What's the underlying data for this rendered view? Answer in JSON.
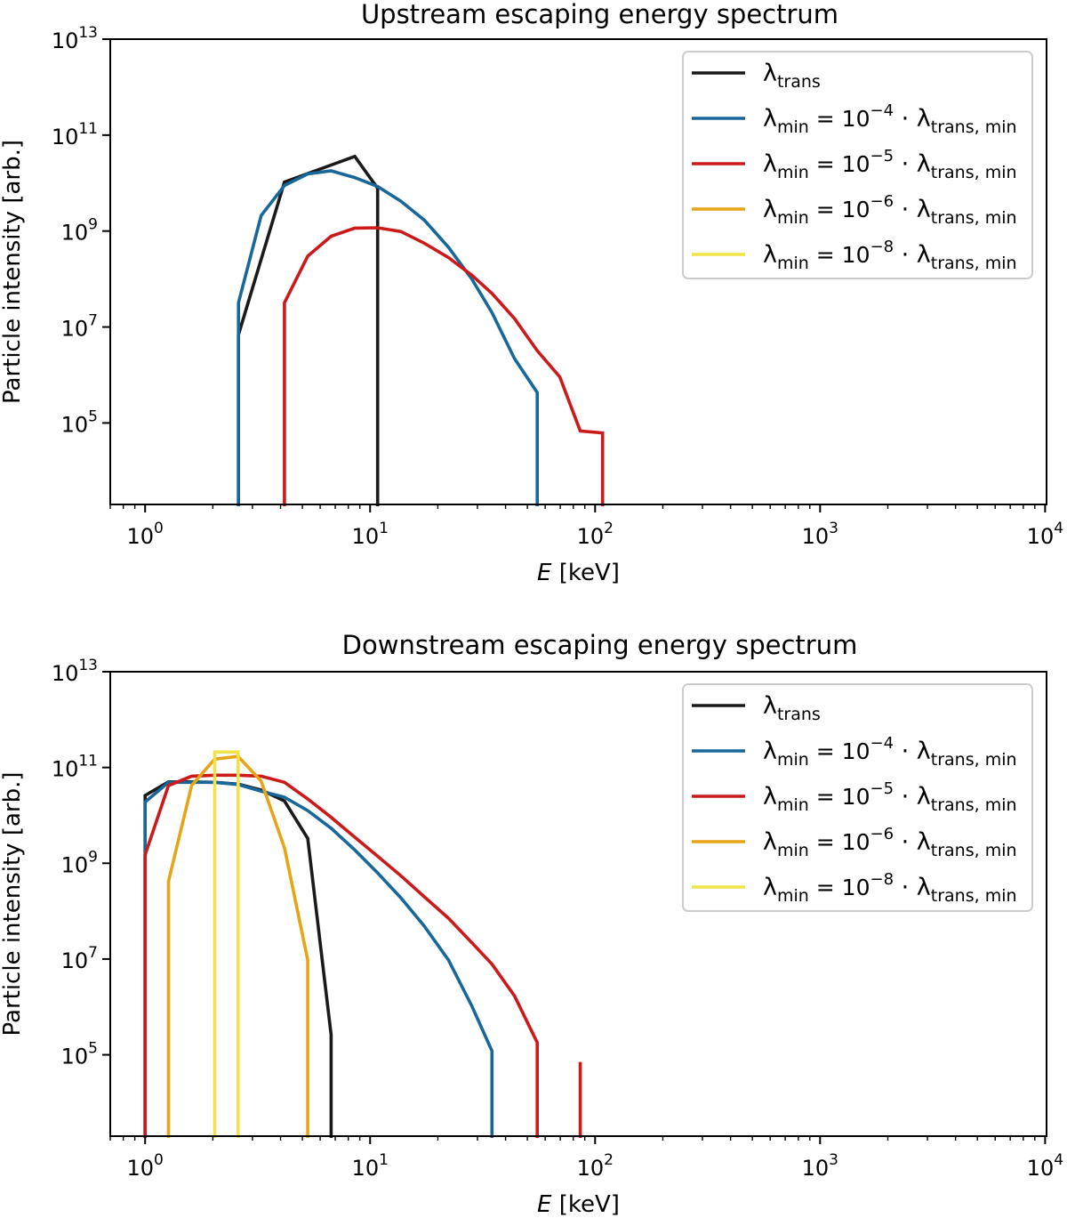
{
  "colors": {
    "lambda_trans": "#1a1a1a",
    "lambda_min_1e-4": "#17679a",
    "lambda_min_1e-5": "#cc1a1a",
    "lambda_min_1e-6": "#e8a417",
    "lambda_min_1e-8": "#f0e34a"
  },
  "chart_data": [
    {
      "type": "line",
      "title": "Upstream escaping energy spectrum",
      "xlabel": {
        "var": "E",
        "unit": " [keV]"
      },
      "ylabel": "Particle intensity [arb.]",
      "xscale": "log",
      "yscale": "log",
      "xlim": [
        0.7,
        10150
      ],
      "ylim": [
        2000,
        10000000000000.0
      ],
      "x_ticks": [
        1,
        10,
        100,
        1000,
        10000
      ],
      "x_tick_labels": [
        {
          "base": "10",
          "exp": "0"
        },
        {
          "base": "10",
          "exp": "1"
        },
        {
          "base": "10",
          "exp": "2"
        },
        {
          "base": "10",
          "exp": "3"
        },
        {
          "base": "10",
          "exp": "4"
        }
      ],
      "y_ticks": [
        100000.0,
        10000000.0,
        1000000000.0,
        100000000000.0,
        10000000000000.0
      ],
      "y_tick_labels": [
        {
          "base": "10",
          "exp": "5"
        },
        {
          "base": "10",
          "exp": "7"
        },
        {
          "base": "10",
          "exp": "9"
        },
        {
          "base": "10",
          "exp": "11"
        },
        {
          "base": "10",
          "exp": "13"
        }
      ],
      "grid": false,
      "legend_position": "top-right",
      "series": [
        {
          "key": "lambda_trans",
          "label": {
            "sym": "λ",
            "sub": "trans",
            "eq": "",
            "exp": "",
            "tail": "",
            "tail_sub": ""
          },
          "x": [
            2.6,
            4.16,
            8.55,
            10.8
          ],
          "y": [
            6900000.0,
            10500000000.0,
            36000000000.0,
            7800000000.0
          ]
        },
        {
          "key": "lambda_min_1e-4",
          "label": {
            "sym": "λ",
            "sub": "min",
            "eq": " = 10",
            "exp": "−4",
            "tail": " · λ",
            "tail_sub": "trans, min"
          },
          "x": [
            2.6,
            3.28,
            4.16,
            5.28,
            6.71,
            8.55,
            10.8,
            13.7,
            17.4,
            22.3,
            28.3,
            34.8,
            43.8,
            55.3
          ],
          "y": [
            32000000.0,
            2100000000.0,
            8900000000.0,
            15500000000.0,
            18000000000.0,
            13000000000.0,
            8500000000.0,
            4200000000.0,
            1700000000.0,
            460000000.0,
            100000000.0,
            20000000.0,
            2200000.0,
            430000.0
          ]
        },
        {
          "key": "lambda_min_1e-5",
          "label": {
            "sym": "λ",
            "sub": "min",
            "eq": " = 10",
            "exp": "−5",
            "tail": " · λ",
            "tail_sub": "trans, min"
          },
          "x": [
            4.16,
            5.28,
            6.71,
            8.55,
            10.8,
            13.7,
            17.4,
            22.3,
            28.3,
            34.8,
            43.8,
            55.3,
            69.7,
            85.9,
            108
          ],
          "y": [
            32000000.0,
            300000000.0,
            780000000.0,
            1150000000.0,
            1170000000.0,
            980000000.0,
            560000000.0,
            280000000.0,
            120000000.0,
            50000000.0,
            15000000.0,
            3200000.0,
            910000.0,
            68000.0,
            62000.0
          ]
        },
        {
          "key": "lambda_min_1e-6",
          "label": {
            "sym": "λ",
            "sub": "min",
            "eq": " = 10",
            "exp": "−6",
            "tail": " · λ",
            "tail_sub": "trans, min"
          },
          "x": [],
          "y": []
        },
        {
          "key": "lambda_min_1e-8",
          "label": {
            "sym": "λ",
            "sub": "min",
            "eq": " = 10",
            "exp": "−8",
            "tail": " · λ",
            "tail_sub": "trans, min"
          },
          "x": [],
          "y": []
        }
      ]
    },
    {
      "type": "line",
      "title": "Downstream escaping energy spectrum",
      "xlabel": {
        "var": "E",
        "unit": " [keV]"
      },
      "ylabel": "Particle intensity [arb.]",
      "xscale": "log",
      "yscale": "log",
      "xlim": [
        0.7,
        10150
      ],
      "ylim": [
        2000,
        10000000000000.0
      ],
      "x_ticks": [
        1,
        10,
        100,
        1000,
        10000
      ],
      "x_tick_labels": [
        {
          "base": "10",
          "exp": "0"
        },
        {
          "base": "10",
          "exp": "1"
        },
        {
          "base": "10",
          "exp": "2"
        },
        {
          "base": "10",
          "exp": "3"
        },
        {
          "base": "10",
          "exp": "4"
        }
      ],
      "y_ticks": [
        100000.0,
        10000000.0,
        1000000000.0,
        100000000000.0,
        10000000000000.0
      ],
      "y_tick_labels": [
        {
          "base": "10",
          "exp": "5"
        },
        {
          "base": "10",
          "exp": "7"
        },
        {
          "base": "10",
          "exp": "9"
        },
        {
          "base": "10",
          "exp": "11"
        },
        {
          "base": "10",
          "exp": "13"
        }
      ],
      "grid": false,
      "legend_position": "top-right",
      "series": [
        {
          "key": "lambda_trans",
          "label": {
            "sym": "λ",
            "sub": "trans",
            "eq": "",
            "exp": "",
            "tail": "",
            "tail_sub": ""
          },
          "x": [
            1.0,
            1.27,
            1.61,
            2.04,
            2.59,
            3.28,
            4.16,
            5.28,
            6.71
          ],
          "y": [
            26000000000.0,
            50000000000.0,
            50000000000.0,
            49000000000.0,
            45000000000.0,
            34000000000.0,
            20000000000.0,
            3300000000.0,
            260000.0
          ]
        },
        {
          "key": "lambda_min_1e-4",
          "label": {
            "sym": "λ",
            "sub": "min",
            "eq": " = 10",
            "exp": "−4",
            "tail": " · λ",
            "tail_sub": "trans, min"
          },
          "x": [
            1.0,
            1.27,
            1.61,
            2.04,
            2.59,
            3.28,
            4.16,
            5.28,
            6.71,
            8.55,
            10.8,
            13.7,
            17.4,
            22.3,
            28.3,
            34.8
          ],
          "y": [
            19000000000.0,
            49000000000.0,
            49000000000.0,
            49000000000.0,
            44000000000.0,
            32000000000.0,
            24000000000.0,
            12600000000.0,
            5400000000.0,
            1900000000.0,
            630000000.0,
            190000000.0,
            49000000.0,
            9500000.0,
            1050000.0,
            120000.0
          ]
        },
        {
          "key": "lambda_min_1e-5",
          "label": {
            "sym": "λ",
            "sub": "min",
            "eq": " = 10",
            "exp": "−5",
            "tail": " · λ",
            "tail_sub": "trans, min"
          },
          "x": [
            1.0,
            1.27,
            1.61,
            2.04,
            2.59,
            3.28,
            4.16,
            5.28,
            6.71,
            8.55,
            10.8,
            13.7,
            17.4,
            22.3,
            28.3,
            34.8,
            43.8,
            55.3,
            69.7,
            85.9,
            108
          ],
          "y": [
            1500000000.0,
            42000000000.0,
            66000000000.0,
            69000000000.0,
            69000000000.0,
            66000000000.0,
            49000000000.0,
            22000000000.0,
            9100000000.0,
            3500000000.0,
            1400000000.0,
            550000000.0,
            200000000.0,
            71000000.0,
            22000000.0,
            7800000.0,
            1700000.0,
            180000.0,
            0,
            71000.0,
            0
          ]
        },
        {
          "key": "lambda_min_1e-6",
          "label": {
            "sym": "λ",
            "sub": "min",
            "eq": " = 10",
            "exp": "−6",
            "tail": " · λ",
            "tail_sub": "trans, min"
          },
          "x": [
            1.27,
            1.61,
            2.04,
            2.59,
            3.28,
            4.16,
            5.28
          ],
          "y": [
            420000000.0,
            42000000000.0,
            150000000000.0,
            170000000000.0,
            52000000000.0,
            2100000000.0,
            9500000.0
          ]
        },
        {
          "key": "lambda_min_1e-8",
          "label": {
            "sym": "λ",
            "sub": "min",
            "eq": " = 10",
            "exp": "−8",
            "tail": " · λ",
            "tail_sub": "trans, min"
          },
          "x": [
            2.04,
            2.59
          ],
          "y": [
            210000000000.0,
            210000000000.0
          ]
        }
      ]
    }
  ]
}
